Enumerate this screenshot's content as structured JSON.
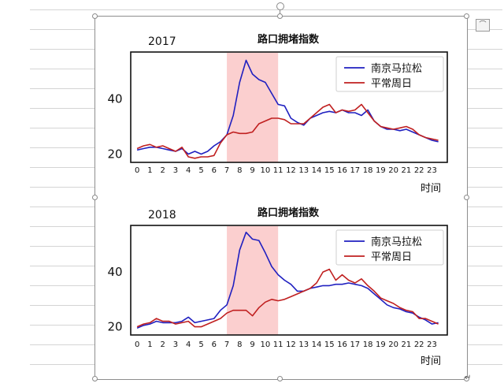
{
  "ui": {
    "layout_options_icon": "layout-options-icon",
    "rotate_handle_icon": "rotate-handle-icon"
  },
  "charts": [
    {
      "year": "2017",
      "title": "路口拥堵指数",
      "xlabel": "时间",
      "legend": [
        "南京马拉松",
        "平常周日"
      ],
      "yticks": [
        "40",
        "20"
      ]
    },
    {
      "year": "2018",
      "title": "路口拥堵指数",
      "xlabel": "时间",
      "legend": [
        "南京马拉松",
        "平常周日"
      ],
      "yticks": [
        "40",
        "20"
      ]
    }
  ],
  "chart_data": [
    {
      "type": "line",
      "title": "路口拥堵指数",
      "year": "2017",
      "xlabel": "时间",
      "x_ticks": [
        0,
        1,
        2,
        3,
        4,
        5,
        6,
        7,
        8,
        9,
        10,
        11,
        12,
        13,
        14,
        15,
        16,
        17,
        18,
        19,
        20,
        21,
        22,
        23
      ],
      "y_ticks": [
        20,
        40
      ],
      "ylim": [
        17,
        57
      ],
      "xlim": [
        -0.5,
        24.2
      ],
      "highlight_range": [
        7,
        11
      ],
      "legend_position": "top-right",
      "series": [
        {
          "name": "南京马拉松",
          "color": "#2020c0",
          "x": [
            0,
            0.5,
            1,
            1.5,
            2,
            2.5,
            3,
            3.5,
            4,
            4.5,
            5,
            5.5,
            6,
            6.5,
            7,
            7.5,
            8,
            8.5,
            9,
            9.5,
            10,
            10.5,
            11,
            11.5,
            12,
            12.5,
            13,
            13.5,
            14,
            14.5,
            15,
            15.5,
            16,
            16.5,
            17,
            17.5,
            18,
            18.5,
            19,
            19.5,
            20,
            20.5,
            21,
            21.5,
            22,
            22.5,
            23,
            23.5
          ],
          "y": [
            21.5,
            22,
            22.5,
            22.5,
            22,
            21.5,
            21,
            22,
            20,
            21,
            20,
            21,
            23,
            24.5,
            27,
            34,
            46,
            54,
            49,
            47,
            46,
            42,
            38,
            37.5,
            33,
            31.5,
            30.5,
            33,
            34,
            35,
            35.5,
            35,
            36,
            35,
            35,
            34,
            36,
            32,
            30,
            29,
            29,
            28.5,
            29,
            28,
            27,
            26,
            25,
            24.5
          ]
        },
        {
          "name": "平常周日",
          "color": "#c02020",
          "x": [
            0,
            0.5,
            1,
            1.5,
            2,
            2.5,
            3,
            3.5,
            4,
            4.5,
            5,
            5.5,
            6,
            6.5,
            7,
            7.5,
            8,
            8.5,
            9,
            9.5,
            10,
            10.5,
            11,
            11.5,
            12,
            12.5,
            13,
            13.5,
            14,
            14.5,
            15,
            15.5,
            16,
            16.5,
            17,
            17.5,
            18,
            18.5,
            19,
            19.5,
            20,
            20.5,
            21,
            21.5,
            22,
            22.5,
            23,
            23.5
          ],
          "y": [
            22,
            23,
            23.5,
            22.5,
            23,
            22,
            21,
            22.5,
            19,
            18.5,
            19,
            19,
            19.5,
            24,
            27,
            28,
            27.5,
            27.5,
            28,
            31,
            32,
            33,
            33,
            32.5,
            31,
            31,
            31,
            33,
            35,
            37,
            38,
            35,
            36,
            35.5,
            36,
            38,
            35,
            32,
            30,
            29.5,
            29,
            29.5,
            30,
            29,
            27,
            26,
            25.5,
            25
          ]
        }
      ]
    },
    {
      "type": "line",
      "title": "路口拥堵指数",
      "year": "2018",
      "xlabel": "时间",
      "x_ticks": [
        0,
        1,
        2,
        3,
        4,
        5,
        6,
        7,
        8,
        9,
        10,
        11,
        12,
        13,
        14,
        15,
        16,
        17,
        18,
        19,
        20,
        21,
        22,
        23
      ],
      "y_ticks": [
        20,
        40
      ],
      "ylim": [
        17,
        57
      ],
      "xlim": [
        -0.5,
        24.2
      ],
      "highlight_range": [
        7,
        11
      ],
      "legend_position": "top-right",
      "series": [
        {
          "name": "南京马拉松",
          "color": "#2020c0",
          "x": [
            0,
            0.5,
            1,
            1.5,
            2,
            2.5,
            3,
            3.5,
            4,
            4.5,
            5,
            5.5,
            6,
            6.5,
            7,
            7.5,
            8,
            8.5,
            9,
            9.5,
            10,
            10.5,
            11,
            11.5,
            12,
            12.5,
            13,
            13.5,
            14,
            14.5,
            15,
            15.5,
            16,
            16.5,
            17,
            17.5,
            18,
            18.5,
            19,
            19.5,
            20,
            20.5,
            21,
            21.5,
            22,
            22.5,
            23,
            23.5
          ],
          "y": [
            19.5,
            20.5,
            21,
            22,
            21.5,
            21.5,
            21.5,
            22,
            23.5,
            21.5,
            22,
            22.5,
            23,
            26,
            28,
            35,
            48,
            54.5,
            52,
            51.5,
            47,
            42,
            39,
            37,
            35.5,
            33,
            33,
            34,
            34.5,
            35,
            35,
            35.5,
            35.5,
            36,
            35.5,
            35,
            34,
            32,
            30,
            28,
            27,
            26.5,
            25.5,
            25,
            23.5,
            22.5,
            21,
            21.5
          ]
        },
        {
          "name": "平常周日",
          "color": "#c02020",
          "x": [
            0,
            0.5,
            1,
            1.5,
            2,
            2.5,
            3,
            3.5,
            4,
            4.5,
            5,
            5.5,
            6,
            6.5,
            7,
            7.5,
            8,
            8.5,
            9,
            9.5,
            10,
            10.5,
            11,
            11.5,
            12,
            12.5,
            13,
            13.5,
            14,
            14.5,
            15,
            15.5,
            16,
            16.5,
            17,
            17.5,
            18,
            18.5,
            19,
            19.5,
            20,
            20.5,
            21,
            21.5,
            22,
            22.5,
            23,
            23.5
          ],
          "y": [
            20,
            21,
            21.5,
            23,
            22,
            22,
            21,
            21.5,
            22,
            20,
            20,
            21,
            22,
            23,
            25,
            26,
            26,
            26,
            24,
            27,
            29,
            30,
            29.5,
            30,
            31,
            32,
            33,
            34,
            36,
            40,
            41,
            37,
            39,
            37,
            36,
            37.5,
            35,
            33,
            30.5,
            29.5,
            28.5,
            27,
            26,
            25.5,
            23,
            23,
            22,
            21
          ]
        }
      ]
    }
  ]
}
